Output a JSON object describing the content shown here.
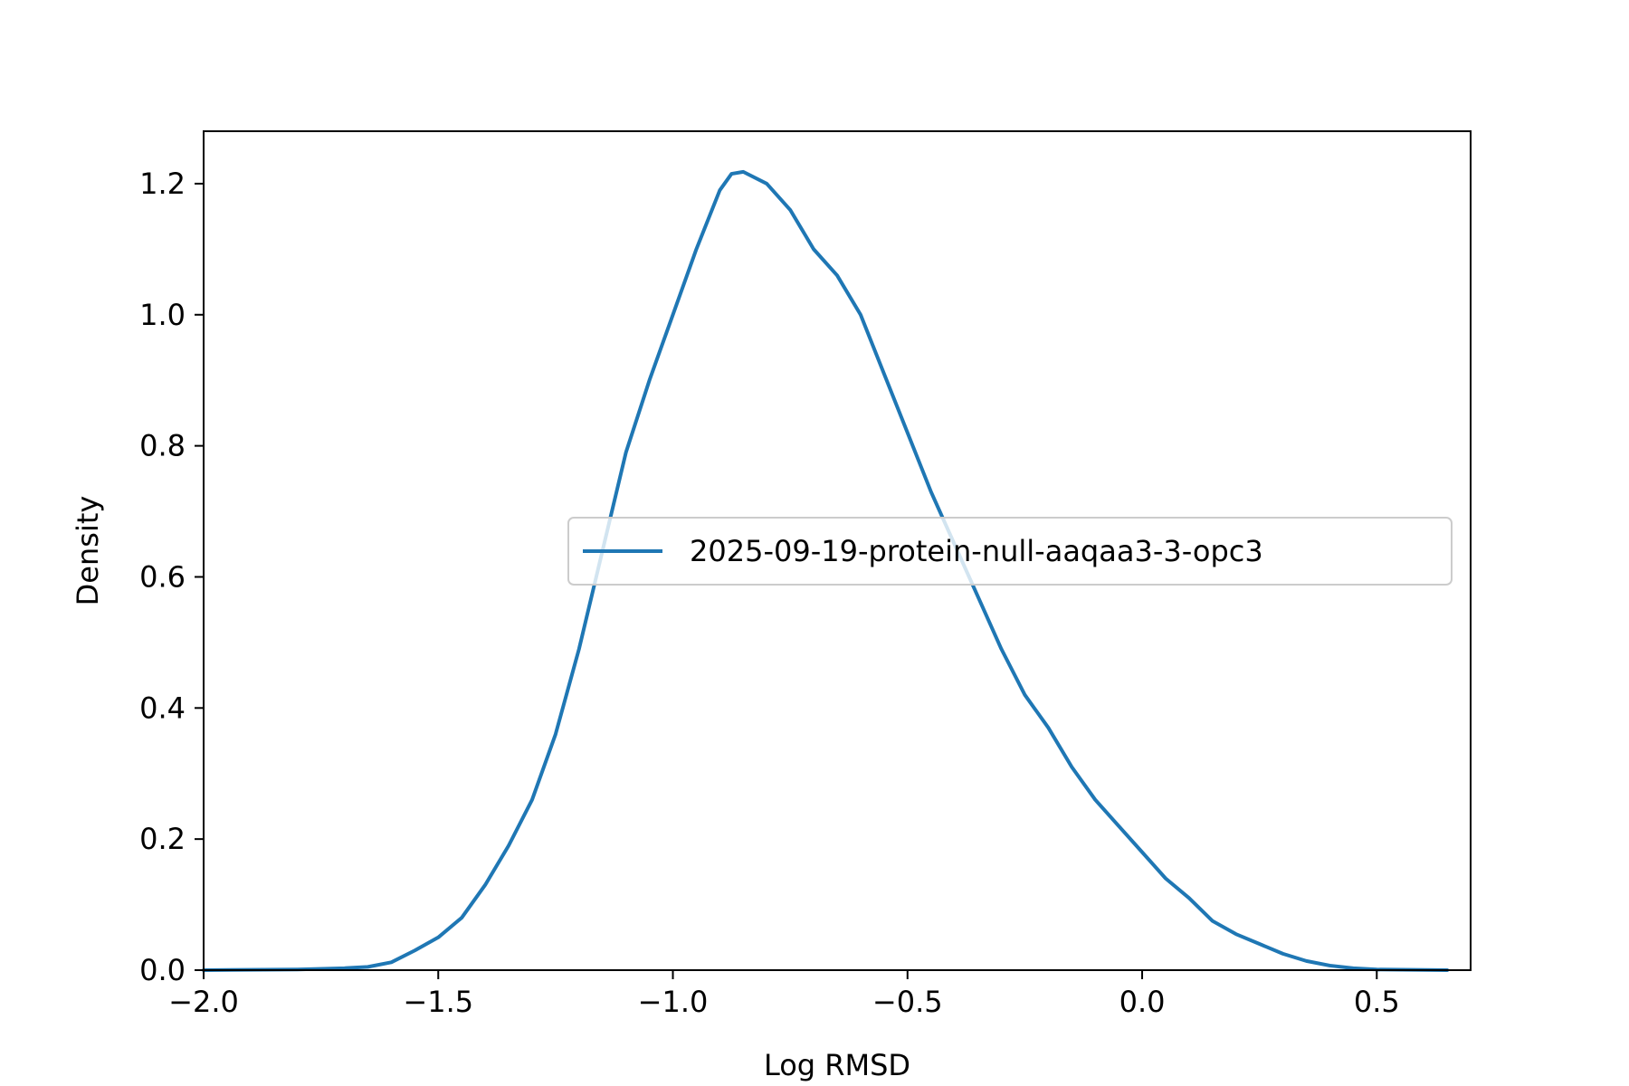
{
  "chart_data": {
    "type": "line",
    "title": "",
    "xlabel": "Log RMSD",
    "ylabel": "Density",
    "xlim": [
      -2.0,
      0.7
    ],
    "ylim": [
      0.0,
      1.28
    ],
    "x_ticks": [
      -2.0,
      -1.5,
      -1.0,
      -0.5,
      0.0,
      0.5
    ],
    "x_tick_labels": [
      "−2.0",
      "−1.5",
      "−1.0",
      "−0.5",
      "0.0",
      "0.5"
    ],
    "y_ticks": [
      0.0,
      0.2,
      0.4,
      0.6,
      0.8,
      1.0,
      1.2
    ],
    "y_tick_labels": [
      "0.0",
      "0.2",
      "0.4",
      "0.6",
      "0.8",
      "1.0",
      "1.2"
    ],
    "grid": false,
    "legend_position": "center-right",
    "series": [
      {
        "name": "2025-09-19-protein-null-aaqaa3-3-opc3",
        "color": "#1f77b4",
        "points": [
          [
            -2.0,
            0.0
          ],
          [
            -1.8,
            0.001
          ],
          [
            -1.7,
            0.003
          ],
          [
            -1.65,
            0.005
          ],
          [
            -1.6,
            0.012
          ],
          [
            -1.55,
            0.03
          ],
          [
            -1.5,
            0.05
          ],
          [
            -1.45,
            0.08
          ],
          [
            -1.4,
            0.13
          ],
          [
            -1.35,
            0.19
          ],
          [
            -1.3,
            0.26
          ],
          [
            -1.25,
            0.36
          ],
          [
            -1.2,
            0.49
          ],
          [
            -1.15,
            0.64
          ],
          [
            -1.1,
            0.79
          ],
          [
            -1.05,
            0.9
          ],
          [
            -1.0,
            1.0
          ],
          [
            -0.95,
            1.1
          ],
          [
            -0.9,
            1.19
          ],
          [
            -0.875,
            1.215
          ],
          [
            -0.85,
            1.218
          ],
          [
            -0.8,
            1.2
          ],
          [
            -0.75,
            1.16
          ],
          [
            -0.7,
            1.1
          ],
          [
            -0.65,
            1.06
          ],
          [
            -0.6,
            1.0
          ],
          [
            -0.55,
            0.91
          ],
          [
            -0.5,
            0.82
          ],
          [
            -0.45,
            0.73
          ],
          [
            -0.4,
            0.65
          ],
          [
            -0.35,
            0.57
          ],
          [
            -0.3,
            0.49
          ],
          [
            -0.25,
            0.42
          ],
          [
            -0.2,
            0.37
          ],
          [
            -0.15,
            0.31
          ],
          [
            -0.1,
            0.26
          ],
          [
            -0.05,
            0.22
          ],
          [
            0.0,
            0.18
          ],
          [
            0.05,
            0.14
          ],
          [
            0.1,
            0.11
          ],
          [
            0.15,
            0.075
          ],
          [
            0.2,
            0.055
          ],
          [
            0.25,
            0.04
          ],
          [
            0.3,
            0.025
          ],
          [
            0.35,
            0.014
          ],
          [
            0.4,
            0.007
          ],
          [
            0.45,
            0.003
          ],
          [
            0.5,
            0.001
          ],
          [
            0.65,
            0.0
          ]
        ]
      }
    ]
  }
}
